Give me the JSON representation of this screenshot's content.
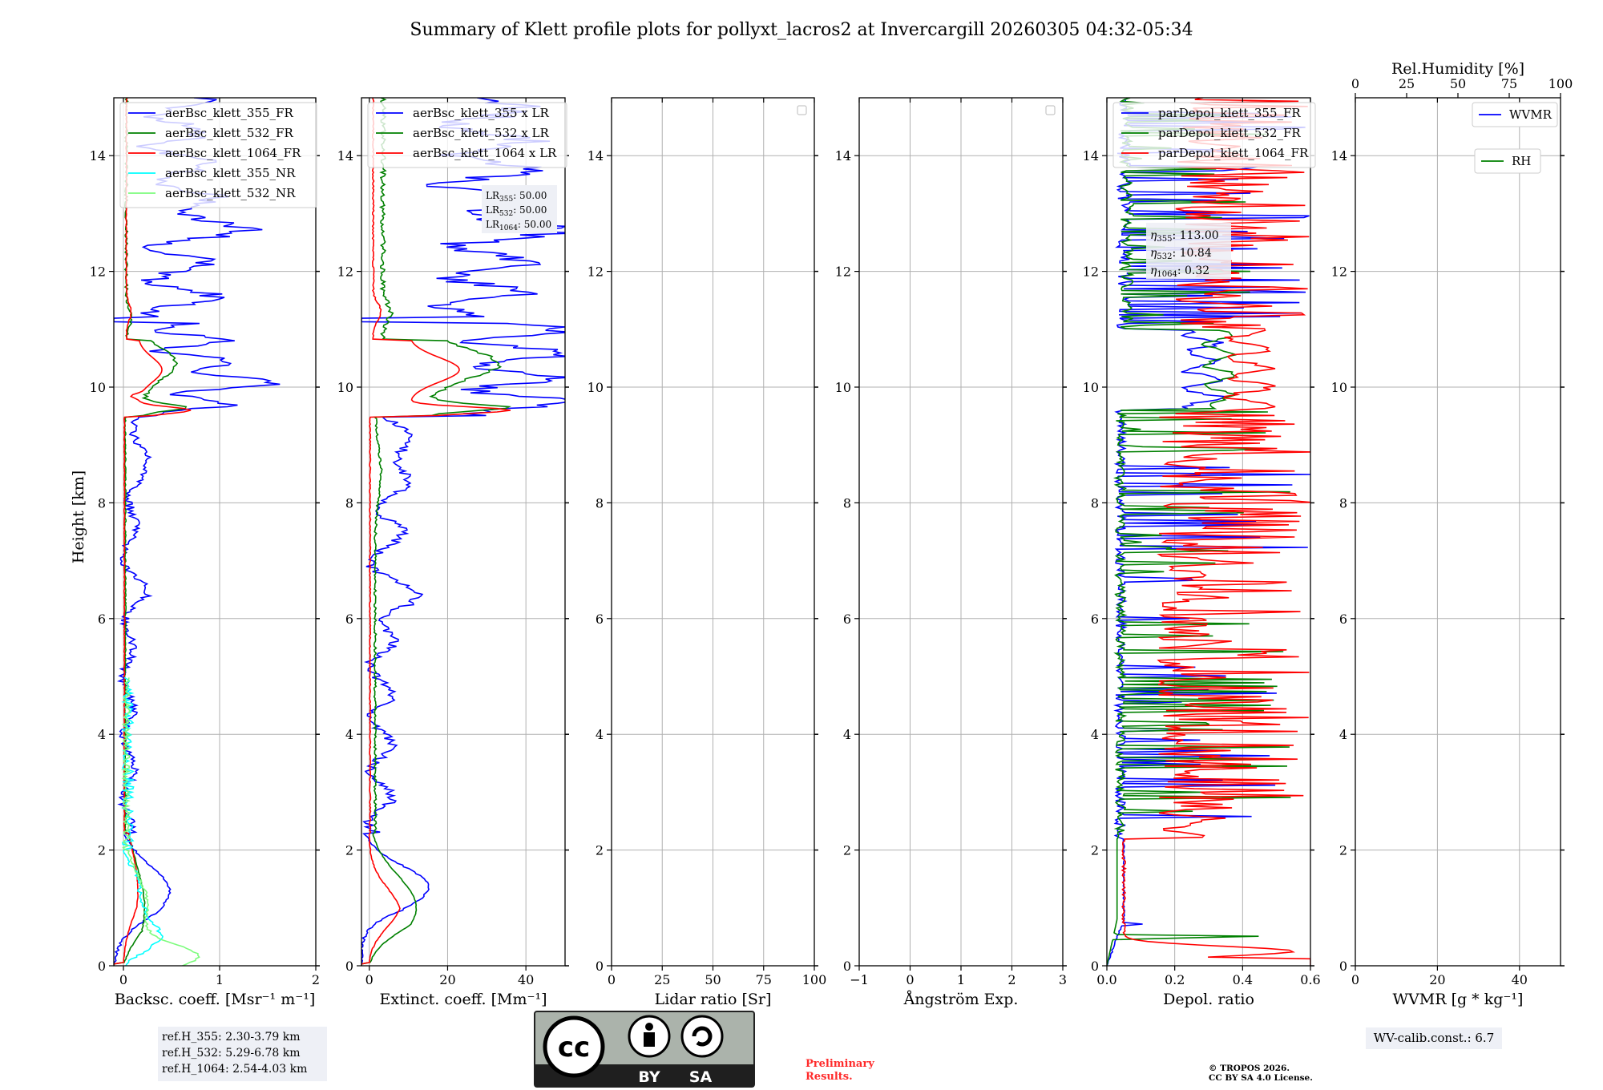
{
  "title": "Summary of Klett profile plots for pollyxt_lacros2 at Invercargill 20260305 04:32-05:34",
  "ylabel": "Height [km]",
  "colors": {
    "blue": "#0000ff",
    "green": "#008000",
    "red": "#ff0000",
    "cyan": "#00ffff",
    "lightgreen": "#7cfc7c"
  },
  "chart_data": [
    {
      "type": "line",
      "id": "bsc",
      "xlabel": "Backsc. coeff. [Msr⁻¹ m⁻¹]",
      "xlim": [
        -0.1,
        2
      ],
      "ylim": [
        0,
        15
      ],
      "xticks": [
        {
          "v": 0,
          "t": "0"
        },
        {
          "v": 1,
          "t": "1"
        },
        {
          "v": 2,
          "t": "2"
        }
      ],
      "legend": [
        "aerBsc_klett_355_FR",
        "aerBsc_klett_532_FR",
        "aerBsc_klett_1064_FR",
        "aerBsc_klett_355_NR",
        "aerBsc_klett_532_NR"
      ],
      "series": [
        {
          "name": "aerBsc_klett_355_FR",
          "color": "blue",
          "kind": "bsc355"
        },
        {
          "name": "aerBsc_klett_532_FR",
          "color": "green",
          "kind": "bsc532"
        },
        {
          "name": "aerBsc_klett_1064_FR",
          "color": "red",
          "kind": "bsc1064"
        },
        {
          "name": "aerBsc_klett_355_NR",
          "color": "cyan",
          "kind": "nr355"
        },
        {
          "name": "aerBsc_klett_532_NR",
          "color": "lightgreen",
          "kind": "nr532"
        }
      ],
      "note": [
        "ref.H_355: 2.30-3.79 km",
        "ref.H_532: 5.29-6.78 km",
        "ref.H_1064: 2.54-4.03 km"
      ]
    },
    {
      "type": "line",
      "id": "ext",
      "xlabel": "Extinct. coeff. [Mm⁻¹]",
      "xlim": [
        -2,
        50
      ],
      "ylim": [
        0,
        15
      ],
      "xticks": [
        {
          "v": 0,
          "t": "0"
        },
        {
          "v": 20,
          "t": "20"
        },
        {
          "v": 40,
          "t": "40"
        }
      ],
      "legend": [
        "aerBsc_klett_355 x LR",
        "aerBsc_klett_532 x LR",
        "aerBsc_klett_1064 x LR"
      ],
      "series": [
        {
          "name": "aerBsc_klett_355 x LR",
          "color": "blue",
          "kind": "ext355"
        },
        {
          "name": "aerBsc_klett_532 x LR",
          "color": "green",
          "kind": "ext532"
        },
        {
          "name": "aerBsc_klett_1064 x LR",
          "color": "red",
          "kind": "ext1064"
        }
      ],
      "lr": [
        "LR355: 50.00",
        "LR532: 50.00",
        "LR1064: 50.00"
      ]
    },
    {
      "type": "line",
      "id": "lr",
      "xlabel": "Lidar ratio [Sr]",
      "xlim": [
        0,
        100
      ],
      "ylim": [
        0,
        15
      ],
      "xticks": [
        {
          "v": 0,
          "t": "0"
        },
        {
          "v": 25,
          "t": "25"
        },
        {
          "v": 50,
          "t": "50"
        },
        {
          "v": 75,
          "t": "75"
        },
        {
          "v": 100,
          "t": "100"
        }
      ],
      "series": []
    },
    {
      "type": "line",
      "id": "ang",
      "xlabel": "Ångström Exp.",
      "xlim": [
        -1,
        3
      ],
      "ylim": [
        0,
        15
      ],
      "xticks": [
        {
          "v": -1,
          "t": "−1"
        },
        {
          "v": 0,
          "t": "0"
        },
        {
          "v": 1,
          "t": "1"
        },
        {
          "v": 2,
          "t": "2"
        },
        {
          "v": 3,
          "t": "3"
        }
      ],
      "series": []
    },
    {
      "type": "line",
      "id": "dep",
      "xlabel": "Depol. ratio",
      "xlim": [
        0,
        0.6
      ],
      "ylim": [
        0,
        15
      ],
      "xticks": [
        {
          "v": 0,
          "t": "0.0"
        },
        {
          "v": 0.2,
          "t": "0.2"
        },
        {
          "v": 0.4,
          "t": "0.4"
        },
        {
          "v": 0.6,
          "t": "0.6"
        }
      ],
      "legend": [
        "parDepol_klett_355_FR",
        "parDepol_klett_532_FR",
        "parDepol_klett_1064_FR"
      ],
      "series": [
        {
          "name": "parDepol_klett_355_FR",
          "color": "blue",
          "kind": "dep355"
        },
        {
          "name": "parDepol_klett_532_FR",
          "color": "green",
          "kind": "dep532"
        },
        {
          "name": "parDepol_klett_1064_FR",
          "color": "red",
          "kind": "dep1064"
        }
      ],
      "eta": [
        "η355: 113.00",
        "η532: 10.84",
        "η1064: 0.32"
      ]
    },
    {
      "type": "line",
      "id": "wv",
      "xlabel": "WVMR [g * kg⁻¹]",
      "xlim": [
        0,
        50
      ],
      "ylim": [
        0,
        15
      ],
      "xticks": [
        {
          "v": 0,
          "t": "0"
        },
        {
          "v": 20,
          "t": "20"
        },
        {
          "v": 40,
          "t": "40"
        }
      ],
      "top_label": "Rel.Humidity [%]",
      "top_ticks": [
        "0",
        "25",
        "50",
        "75",
        "100"
      ],
      "legend": [
        "WVMR",
        "RH"
      ],
      "series": [],
      "note": "WV-calib.const.: 6.7"
    }
  ],
  "yticks": [
    "0",
    "2",
    "4",
    "6",
    "8",
    "10",
    "12",
    "14"
  ],
  "footer": {
    "badge_by": "BY",
    "badge_sa": "SA",
    "badge_cc": "cc",
    "preliminary": [
      "Preliminary",
      "Results."
    ],
    "copyright": [
      "© TROPOS 2026.",
      "CC BY SA 4.0 License."
    ]
  }
}
